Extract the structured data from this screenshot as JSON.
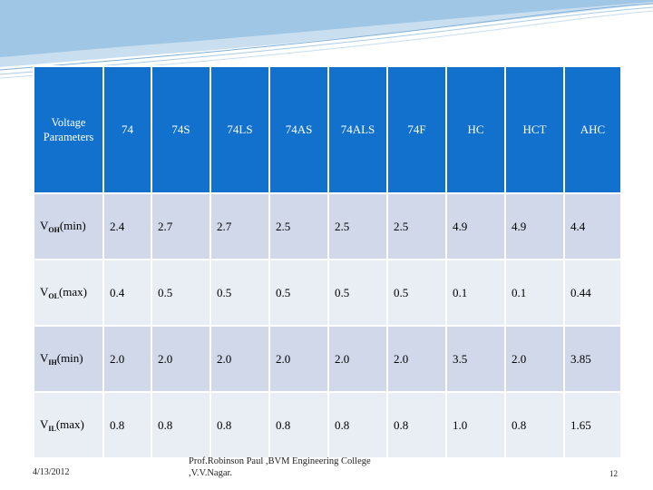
{
  "slide": {
    "table": {
      "headers": [
        "Voltage Parameters",
        "74",
        "74S",
        "74LS",
        "74AS",
        "74ALS",
        "74F",
        "HC",
        "HCT",
        "AHC"
      ],
      "rows": [
        {
          "param_main": "V",
          "param_sub": "OH",
          "param_suffix": "(min)",
          "values": [
            "2.4",
            "2.7",
            "2.7",
            "2.5",
            "2.5",
            "2.5",
            "4.9",
            "4.9",
            "4.4"
          ]
        },
        {
          "param_main": "V",
          "param_sub": "OL",
          "param_suffix": "(max)",
          "values": [
            "0.4",
            "0.5",
            "0.5",
            "0.5",
            "0.5",
            "0.5",
            "0.1",
            "0.1",
            "0.44"
          ]
        },
        {
          "param_main": "V",
          "param_sub": "IH",
          "param_suffix": "(min)",
          "values": [
            "2.0",
            "2.0",
            "2.0",
            "2.0",
            "2.0",
            "2.0",
            "3.5",
            "2.0",
            "3.85"
          ]
        },
        {
          "param_main": "V",
          "param_sub": "IL",
          "param_suffix": "(max)",
          "values": [
            "0.8",
            "0.8",
            "0.8",
            "0.8",
            "0.8",
            "0.8",
            "1.0",
            "0.8",
            "1.65"
          ]
        }
      ]
    },
    "footer": {
      "date": "4/13/2012",
      "credit_line1": "Prof.Robinson Paul ,BVM Engineering College",
      "credit_line2": ",V.V.Nagar.",
      "page_number": "12"
    },
    "colors": {
      "header_fill": "#1171cc",
      "row_odd": "#d0d8ea",
      "row_even": "#e9edf4",
      "swoosh": "#9fc6e4"
    }
  }
}
